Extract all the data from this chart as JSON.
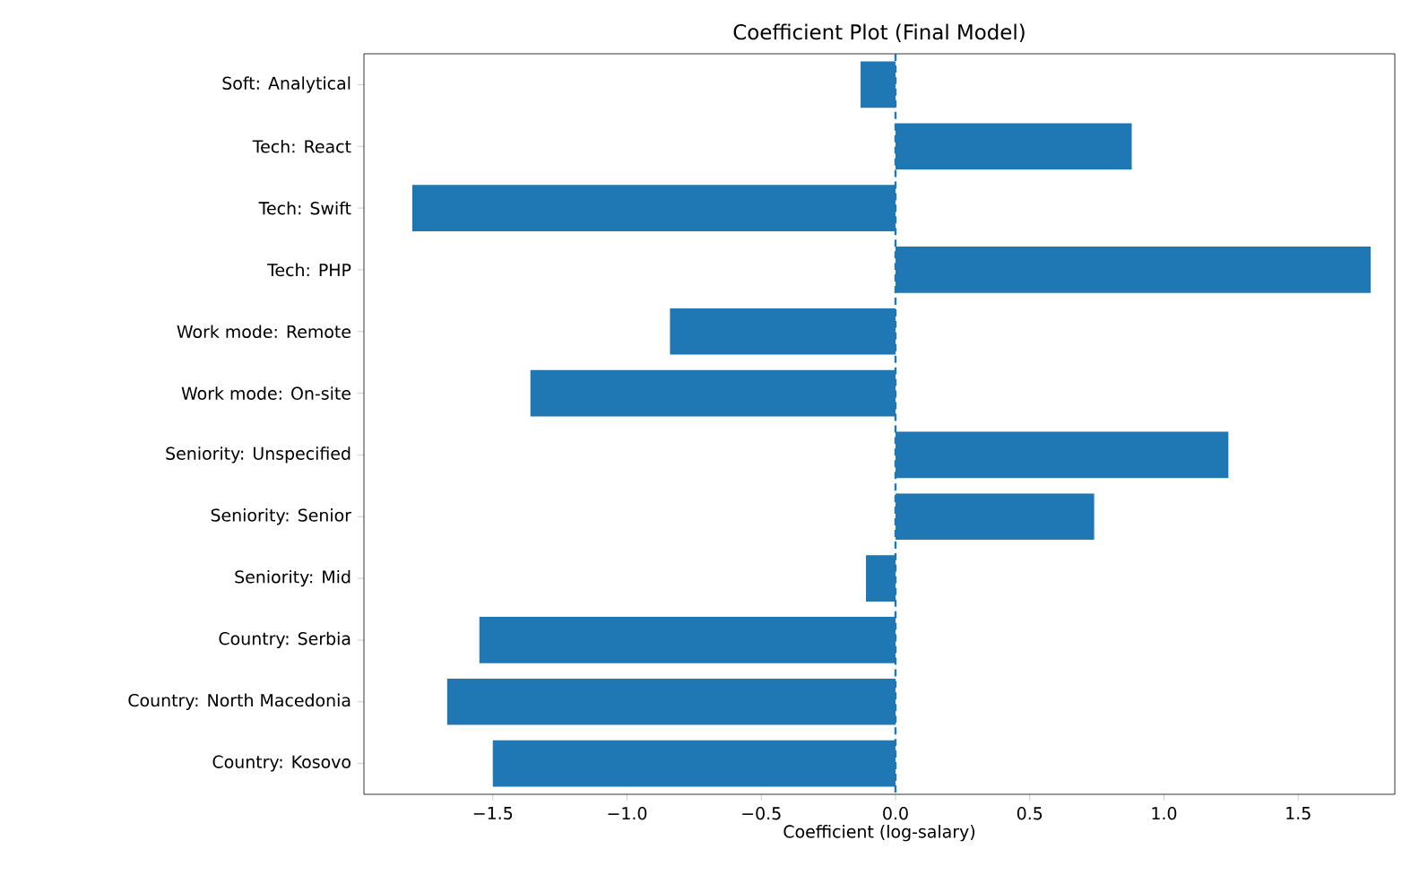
{
  "chart_data": {
    "type": "bar",
    "orientation": "horizontal",
    "title": "Coefficient Plot (Final Model)",
    "xlabel": "Coefficient (log-salary)",
    "categories": [
      "Soft: Analytical",
      "Tech: React",
      "Tech: Swift",
      "Tech: PHP",
      "Work mode: Remote",
      "Work mode: On-site",
      "Seniority: Unspecified",
      "Seniority: Senior",
      "Seniority: Mid",
      "Country: Serbia",
      "Country: North Macedonia",
      "Country: Kosovo"
    ],
    "values": [
      -0.13,
      0.88,
      -1.8,
      1.77,
      -0.84,
      -1.36,
      1.24,
      0.74,
      -0.11,
      -1.55,
      -1.67,
      -1.5
    ],
    "color": "#1f77b4",
    "xlim": [
      -1.98,
      1.86
    ],
    "xticks": [
      {
        "value": -1.5,
        "label": "−1.5"
      },
      {
        "value": -1.0,
        "label": "−1.0"
      },
      {
        "value": -0.5,
        "label": "−0.5"
      },
      {
        "value": 0.0,
        "label": "0.0"
      },
      {
        "value": 0.5,
        "label": "0.5"
      },
      {
        "value": 1.0,
        "label": "1.0"
      },
      {
        "value": 1.5,
        "label": "1.5"
      }
    ],
    "ref_lines": [
      {
        "axis": "x",
        "value": 0,
        "line_style": "dashed",
        "color": "#1f77b4"
      }
    ],
    "grid": false
  }
}
